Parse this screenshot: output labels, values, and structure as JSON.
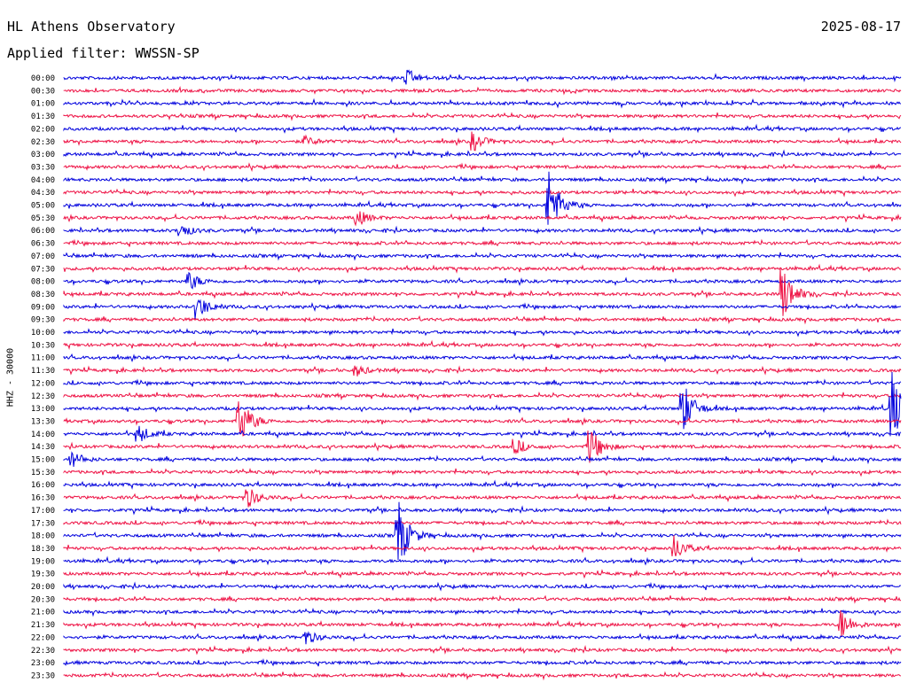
{
  "header": {
    "station": "HL Athens Observatory",
    "date": "2025-08-17",
    "filter": "Applied filter: WWSSN-SP"
  },
  "trace_label": "HHZ  -  30000",
  "colors": {
    "even_row": "#0000dd",
    "odd_row": "#ee1144",
    "text": "#000000"
  },
  "chart_data": {
    "type": "line",
    "title": "",
    "row_labels": [
      "00:00",
      "00:30",
      "01:00",
      "01:30",
      "02:00",
      "02:30",
      "03:00",
      "03:30",
      "04:00",
      "04:30",
      "05:00",
      "05:30",
      "06:00",
      "06:30",
      "07:00",
      "07:30",
      "08:00",
      "08:30",
      "09:00",
      "09:30",
      "10:00",
      "10:30",
      "11:00",
      "11:30",
      "12:00",
      "12:30",
      "13:00",
      "13:30",
      "14:00",
      "14:30",
      "15:00",
      "15:30",
      "16:00",
      "16:30",
      "17:00",
      "17:30",
      "18:00",
      "18:30",
      "19:00",
      "19:30",
      "20:00",
      "20:30",
      "21:00",
      "21:30",
      "22:00",
      "22:30",
      "23:00",
      "23:30"
    ],
    "row_colors": [
      "blue",
      "red"
    ],
    "events": [
      {
        "row": 0,
        "pos": 0.41,
        "amp": 8
      },
      {
        "row": 5,
        "pos": 0.49,
        "amp": 10
      },
      {
        "row": 5,
        "pos": 0.29,
        "amp": 5
      },
      {
        "row": 10,
        "pos": 0.58,
        "amp": 40
      },
      {
        "row": 11,
        "pos": 0.35,
        "amp": 10
      },
      {
        "row": 12,
        "pos": 0.14,
        "amp": 8
      },
      {
        "row": 16,
        "pos": 0.15,
        "amp": 10
      },
      {
        "row": 17,
        "pos": 0.86,
        "amp": 30
      },
      {
        "row": 18,
        "pos": 0.16,
        "amp": 14
      },
      {
        "row": 23,
        "pos": 0.35,
        "amp": 6
      },
      {
        "row": 26,
        "pos": 0.74,
        "amp": 30
      },
      {
        "row": 26,
        "pos": 0.99,
        "amp": 40
      },
      {
        "row": 27,
        "pos": 0.21,
        "amp": 30
      },
      {
        "row": 28,
        "pos": 0.09,
        "amp": 10
      },
      {
        "row": 29,
        "pos": 0.54,
        "amp": 8
      },
      {
        "row": 29,
        "pos": 0.63,
        "amp": 20
      },
      {
        "row": 30,
        "pos": 0.01,
        "amp": 8
      },
      {
        "row": 33,
        "pos": 0.22,
        "amp": 12
      },
      {
        "row": 36,
        "pos": 0.4,
        "amp": 40
      },
      {
        "row": 37,
        "pos": 0.73,
        "amp": 14
      },
      {
        "row": 43,
        "pos": 0.93,
        "amp": 16
      },
      {
        "row": 44,
        "pos": 0.29,
        "amp": 8
      }
    ]
  }
}
